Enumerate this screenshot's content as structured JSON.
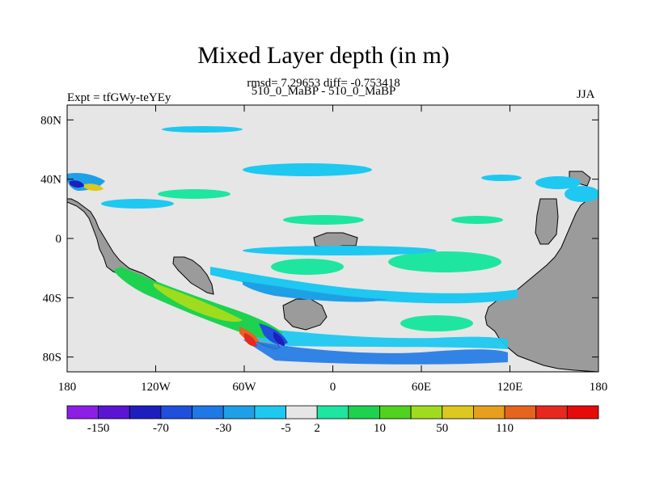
{
  "header": {
    "title": "Mixed Layer depth (in m)",
    "stats": "rmsd= 7.29653 diff= -0.753418",
    "subtitle": "510_0_MaBP - 510_0_MaBP",
    "left_label": "Expt = tfGWy-teYEy",
    "right_label": "JJA"
  },
  "chart_data": {
    "type": "heatmap",
    "title": "Mixed Layer depth (in m)",
    "subtitle": "510_0_MaBP - 510_0_MaBP",
    "annotations": [
      "rmsd= 7.29653 diff= -0.753418",
      "Expt = tfGWy-teYEy",
      "JJA"
    ],
    "xlim": [
      -180,
      180
    ],
    "ylim": [
      -90,
      90
    ],
    "x_ticks": [
      -180,
      -120,
      -60,
      0,
      60,
      120,
      180
    ],
    "x_tick_labels": [
      "180",
      "120W",
      "60W",
      "0",
      "60E",
      "120E",
      "180"
    ],
    "y_ticks": [
      80,
      40,
      0,
      -40,
      -80
    ],
    "y_tick_labels": [
      "80N",
      "40N",
      "0",
      "40S",
      "80S"
    ],
    "colorbar": {
      "colors": [
        "#8c1ee6",
        "#5a14d2",
        "#1e1ebe",
        "#1e50dc",
        "#1e78e6",
        "#1ea0e6",
        "#1ec8f0",
        "#e6e6e6",
        "#1ee6a0",
        "#1ed250",
        "#50d21e",
        "#a0dc1e",
        "#dcc81e",
        "#e6a01e",
        "#e6641e",
        "#e6281e",
        "#e60a0a"
      ],
      "tick_labels": [
        "-150",
        "-70",
        "-30",
        "-5",
        "2",
        "10",
        "50",
        "110"
      ],
      "tick_boundaries": [
        1,
        3,
        5,
        7,
        8,
        10,
        12,
        14
      ]
    },
    "land_color": "#9b9b9b",
    "background_value_color": "#e6e6e6"
  }
}
